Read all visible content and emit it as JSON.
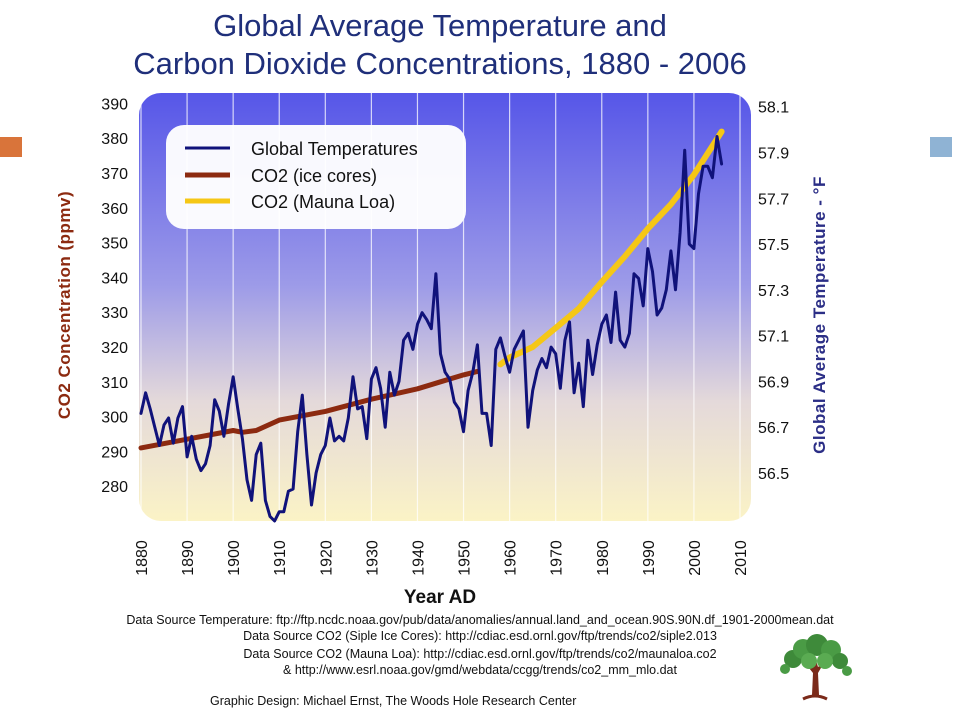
{
  "title_line1": "Global Average Temperature and",
  "title_line2": "Carbon Dioxide Concentrations, 1880 - 2006",
  "chart_data": {
    "type": "line",
    "title": "Global Average Temperature and Carbon Dioxide Concentrations, 1880 - 2006",
    "xlabel": "Year AD",
    "ylabel_left": "CO2 Concentration (ppmv)",
    "ylabel_right": "Global Average Temperature - °F",
    "xlim": [
      1880,
      2010
    ],
    "ylim_left": [
      270,
      393
    ],
    "ylim_right": [
      56.29,
      58.16
    ],
    "x_ticks": [
      "1880",
      "1890",
      "1900",
      "1910",
      "1920",
      "1930",
      "1940",
      "1950",
      "1960",
      "1970",
      "1980",
      "1990",
      "2000",
      "2010"
    ],
    "y_left_ticks": [
      "390",
      "380",
      "370",
      "360",
      "350",
      "340",
      "330",
      "320",
      "310",
      "300",
      "290",
      "280"
    ],
    "y_right_ticks": [
      "58.1",
      "57.9",
      "57.7",
      "57.5",
      "57.3",
      "57.1",
      "56.9",
      "56.7",
      "56.5"
    ],
    "legend_position": "top-left",
    "series": [
      {
        "name": "Global Temperatures",
        "axis": "right",
        "color": "#10127a",
        "x": [
          1880,
          1881,
          1882,
          1883,
          1884,
          1885,
          1886,
          1887,
          1888,
          1889,
          1890,
          1891,
          1892,
          1893,
          1894,
          1895,
          1896,
          1897,
          1898,
          1899,
          1900,
          1901,
          1902,
          1903,
          1904,
          1905,
          1906,
          1907,
          1908,
          1909,
          1910,
          1911,
          1912,
          1913,
          1914,
          1915,
          1916,
          1917,
          1918,
          1919,
          1920,
          1921,
          1922,
          1923,
          1924,
          1925,
          1926,
          1927,
          1928,
          1929,
          1930,
          1931,
          1932,
          1933,
          1934,
          1935,
          1936,
          1937,
          1938,
          1939,
          1940,
          1941,
          1942,
          1943,
          1944,
          1945,
          1946,
          1947,
          1948,
          1949,
          1950,
          1951,
          1952,
          1953,
          1954,
          1955,
          1956,
          1957,
          1958,
          1959,
          1960,
          1961,
          1962,
          1963,
          1964,
          1965,
          1966,
          1967,
          1968,
          1969,
          1970,
          1971,
          1972,
          1973,
          1974,
          1975,
          1976,
          1977,
          1978,
          1979,
          1980,
          1981,
          1982,
          1983,
          1984,
          1985,
          1986,
          1987,
          1988,
          1989,
          1990,
          1991,
          1992,
          1993,
          1994,
          1995,
          1996,
          1997,
          1998,
          1999,
          2000,
          2001,
          2002,
          2003,
          2004,
          2005,
          2006
        ],
        "values": [
          56.76,
          56.85,
          56.78,
          56.7,
          56.62,
          56.71,
          56.74,
          56.63,
          56.74,
          56.79,
          56.57,
          56.66,
          56.56,
          56.51,
          56.54,
          56.62,
          56.82,
          56.77,
          56.66,
          56.8,
          56.92,
          56.78,
          56.65,
          56.47,
          56.38,
          56.58,
          56.63,
          56.38,
          56.31,
          56.29,
          56.33,
          56.33,
          56.42,
          56.43,
          56.68,
          56.84,
          56.58,
          56.36,
          56.5,
          56.58,
          56.62,
          56.74,
          56.64,
          56.66,
          56.64,
          56.74,
          56.92,
          56.78,
          56.79,
          56.65,
          56.91,
          56.96,
          56.87,
          56.7,
          56.94,
          56.84,
          56.9,
          57.08,
          57.11,
          57.04,
          57.15,
          57.2,
          57.17,
          57.13,
          57.37,
          57.02,
          56.94,
          56.91,
          56.81,
          56.78,
          56.68,
          56.86,
          56.94,
          57.06,
          56.76,
          56.76,
          56.62,
          57.04,
          57.09,
          57.01,
          56.94,
          57.04,
          57.08,
          57.12,
          56.7,
          56.86,
          56.95,
          57.0,
          56.96,
          57.05,
          57.02,
          56.87,
          57.08,
          57.16,
          56.85,
          56.98,
          56.79,
          57.08,
          56.93,
          57.06,
          57.15,
          57.19,
          57.07,
          57.29,
          57.08,
          57.05,
          57.11,
          57.37,
          57.35,
          57.23,
          57.48,
          57.38,
          57.19,
          57.22,
          57.3,
          57.47,
          57.3,
          57.55,
          57.91,
          57.5,
          57.48,
          57.72,
          57.84,
          57.84,
          57.79,
          57.97,
          57.85
        ]
      },
      {
        "name": "CO2 (ice cores)",
        "axis": "left",
        "color": "#8c2a10",
        "x": [
          1880,
          1890,
          1900,
          1902,
          1905,
          1910,
          1920,
          1930,
          1940,
          1945,
          1950,
          1953
        ],
        "values": [
          291,
          293.5,
          296,
          295.5,
          296,
          299,
          301.5,
          305,
          308,
          310,
          312,
          313
        ]
      },
      {
        "name": "CO2 (Mauna Loa)",
        "axis": "left",
        "color": "#f5c716",
        "x": [
          1958,
          1960,
          1965,
          1970,
          1975,
          1980,
          1985,
          1990,
          1995,
          2000,
          2005,
          2006
        ],
        "values": [
          315,
          317,
          320,
          325.5,
          331,
          338.7,
          346,
          354,
          361,
          369.5,
          379.8,
          381.9
        ]
      }
    ]
  },
  "sources": {
    "line1": "Data Source Temperature: ftp://ftp.ncdc.noaa.gov/pub/data/anomalies/annual.land_and_ocean.90S.90N.df_1901-2000mean.dat",
    "line2": "Data Source CO2 (Siple Ice Cores): http://cdiac.esd.ornl.gov/ftp/trends/co2/siple2.013",
    "line3": "Data Source CO2 (Mauna Loa): http://cdiac.esd.ornl.gov/ftp/trends/co2/maunaloa.co2",
    "line4": "& http://www.esrl.noaa.gov/gmd/webdata/ccgg/trends/co2_mm_mlo.dat"
  },
  "credit": "Graphic Design: Michael Ernst, The Woods Hole Research Center",
  "colors": {
    "title": "#1f2f7a",
    "accent_left_square": "#d9743a",
    "accent_right_square": "#8fb3d4",
    "plot_top": "#5b5ae6",
    "plot_bottom": "#f8efc3"
  }
}
